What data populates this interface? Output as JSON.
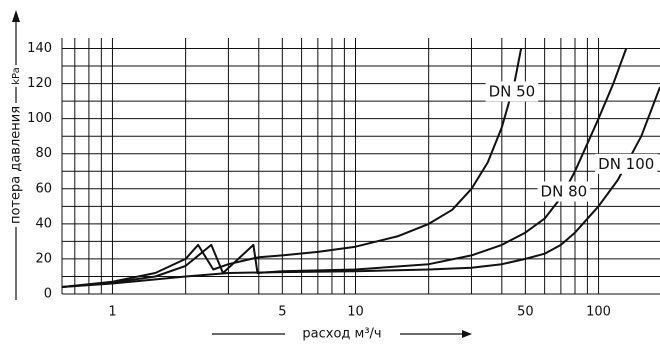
{
  "chart_data": {
    "type": "line",
    "y_label": "потера давления",
    "y_unit": "kPa",
    "x_label": "расход м³/ч",
    "xscale": "log",
    "xlim": [
      0.62,
      179
    ],
    "ylim": [
      0,
      146
    ],
    "xticks": [
      1,
      5,
      10,
      50,
      100
    ],
    "xgrid": [
      0.7,
      0.8,
      0.9,
      1,
      2,
      3,
      4,
      5,
      6,
      7,
      8,
      9,
      10,
      20,
      30,
      40,
      50,
      60,
      70,
      80,
      90,
      100
    ],
    "yticks": [
      0,
      20,
      40,
      60,
      80,
      100,
      120,
      140
    ],
    "yminor": [
      10,
      30,
      50,
      70,
      90,
      110,
      130
    ],
    "series": [
      {
        "name": "DN 50",
        "color": "#111111",
        "x": [
          0.62,
          1,
          1.5,
          2,
          2.25,
          2.6,
          3,
          4,
          5,
          7,
          10,
          15,
          20,
          25,
          30,
          35,
          40,
          45,
          48
        ],
        "values": [
          4,
          7,
          12,
          20,
          28,
          14,
          17,
          21,
          22,
          24,
          27,
          33,
          40,
          48,
          60,
          75,
          95,
          120,
          140
        ]
      },
      {
        "name": "DN 80",
        "color": "#111111",
        "x": [
          0.62,
          1,
          1.5,
          2,
          2.55,
          2.85,
          3.8,
          3.95,
          5,
          10,
          20,
          30,
          40,
          50,
          60,
          70,
          80,
          100,
          115,
          130
        ],
        "values": [
          4,
          6.5,
          10,
          16,
          28,
          12,
          28,
          12,
          13,
          14,
          17,
          22,
          28,
          35,
          43,
          55,
          70,
          100,
          120,
          140
        ]
      },
      {
        "name": "DN 100",
        "color": "#111111",
        "x": [
          0.62,
          1,
          2,
          3,
          5,
          10,
          20,
          30,
          40,
          50,
          60,
          70,
          80,
          100,
          120,
          150,
          179
        ],
        "values": [
          4,
          6,
          10,
          12,
          12.5,
          13,
          14,
          15,
          17,
          20,
          23,
          28,
          35,
          50,
          65,
          90,
          118
        ]
      }
    ],
    "label_x": [
      44,
      72,
      130
    ]
  }
}
